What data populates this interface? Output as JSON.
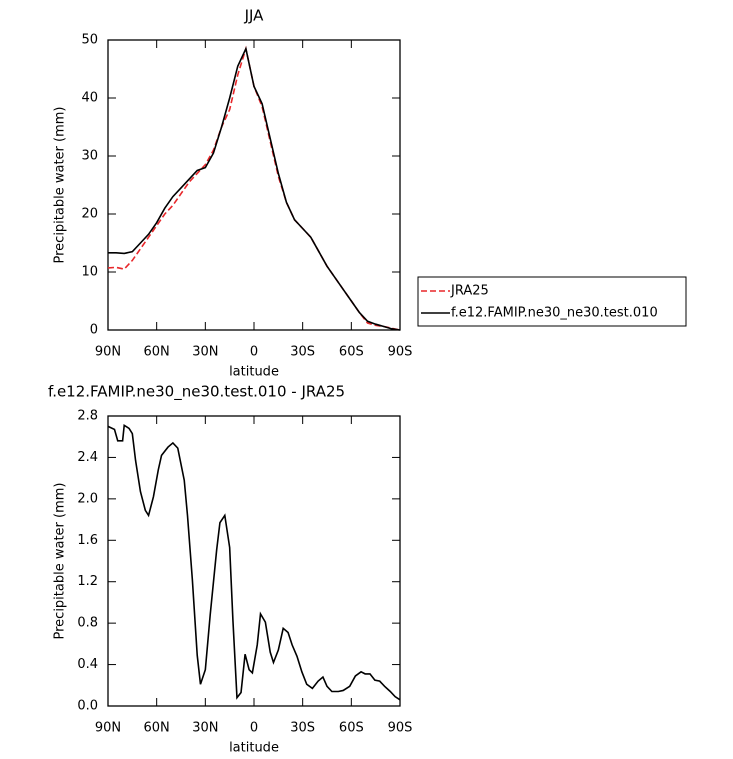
{
  "chart_data": [
    {
      "type": "line",
      "title": "JJA",
      "xlabel": "latitude",
      "ylabel": "Precipitable water (mm)",
      "x": [
        90,
        85,
        80,
        75,
        70,
        65,
        60,
        55,
        50,
        45,
        40,
        35,
        30,
        25,
        20,
        15,
        10,
        5,
        0,
        -5,
        -10,
        -15,
        -20,
        -25,
        -30,
        -35,
        -40,
        -45,
        -50,
        -55,
        -60,
        -65,
        -70,
        -75,
        -80,
        -85,
        -90
      ],
      "series": [
        {
          "name": "JRA25",
          "color": "#e8272a",
          "style": "dashed",
          "values": [
            10.7,
            10.8,
            10.5,
            12,
            14,
            16,
            18,
            20,
            21.5,
            23.5,
            25.5,
            27,
            28.5,
            31,
            35,
            38,
            44,
            48.5,
            42,
            38.5,
            32.5,
            26.5,
            22,
            19,
            17.5,
            16,
            13.5,
            11,
            9,
            7,
            5,
            3,
            1.2,
            0.8,
            0.6,
            0.3,
            0
          ]
        },
        {
          "name": "f.e12.FAMIP.ne30_ne30.test.010",
          "color": "#000000",
          "style": "solid",
          "values": [
            13.3,
            13.3,
            13.2,
            13.5,
            15,
            16.5,
            18.5,
            21,
            23,
            24.5,
            26,
            27.5,
            28,
            30.5,
            35,
            40,
            45.5,
            48.5,
            42,
            39,
            33,
            27,
            22,
            19,
            17.5,
            16,
            13.5,
            11,
            9,
            7,
            5,
            3,
            1.5,
            1,
            0.6,
            0.2,
            0
          ]
        }
      ],
      "xlim": [
        90,
        -90
      ],
      "xticks": [
        {
          "value": 90,
          "label": "90N"
        },
        {
          "value": 60,
          "label": "60N"
        },
        {
          "value": 30,
          "label": "30N"
        },
        0,
        {
          "value": -30,
          "label": "30S"
        },
        {
          "value": -60,
          "label": "60S"
        },
        {
          "value": -90,
          "label": "90S"
        }
      ],
      "ylim": [
        0,
        50
      ],
      "yticks": [
        0,
        10,
        20,
        30,
        40,
        50
      ],
      "legend": "right"
    },
    {
      "type": "line",
      "title": "f.e12.FAMIP.ne30_ne30.test.010 - JRA25",
      "xlabel": "latitude",
      "ylabel": "Precipitable water (mm)",
      "x": [
        90,
        86,
        84,
        81,
        80,
        77,
        75,
        73,
        70,
        67,
        65,
        62,
        59,
        57,
        53,
        50,
        47,
        43,
        41,
        38,
        35,
        33,
        30,
        27,
        23,
        21,
        18,
        15,
        13,
        10.5,
        8,
        5.5,
        3,
        1,
        -2,
        -4,
        -7,
        -10,
        -12,
        -15,
        -18,
        -21,
        -23.5,
        -26.5,
        -29.5,
        -32.5,
        -36,
        -39.5,
        -42.5,
        -45,
        -48,
        -52,
        -55,
        -59,
        -62.5,
        -66,
        -68.5,
        -71.5,
        -74.5,
        -77.5,
        -80.5,
        -84,
        -87,
        -90
      ],
      "color": "#000000",
      "style": "solid",
      "values": [
        2.7,
        2.67,
        2.56,
        2.56,
        2.71,
        2.68,
        2.63,
        2.37,
        2.07,
        1.89,
        1.84,
        2.02,
        2.28,
        2.42,
        2.5,
        2.54,
        2.49,
        2.18,
        1.84,
        1.22,
        0.49,
        0.21,
        0.35,
        0.88,
        1.51,
        1.77,
        1.84,
        1.53,
        0.83,
        0.08,
        0.13,
        0.5,
        0.35,
        0.32,
        0.59,
        0.89,
        0.81,
        0.52,
        0.42,
        0.54,
        0.75,
        0.71,
        0.59,
        0.48,
        0.33,
        0.21,
        0.17,
        0.24,
        0.28,
        0.19,
        0.14,
        0.14,
        0.15,
        0.19,
        0.29,
        0.33,
        0.31,
        0.31,
        0.25,
        0.24,
        0.19,
        0.14,
        0.09,
        0.06
      ],
      "xlim": [
        90,
        -90
      ],
      "xticks": [
        {
          "value": 90,
          "label": "90N"
        },
        {
          "value": 60,
          "label": "60N"
        },
        {
          "value": 30,
          "label": "30N"
        },
        0,
        {
          "value": -30,
          "label": "30S"
        },
        {
          "value": -60,
          "label": "60S"
        },
        {
          "value": -90,
          "label": "90S"
        }
      ],
      "ylim": [
        0,
        2.8
      ],
      "yticks": [
        {
          "value": 0,
          "label": "0.0"
        },
        0.4,
        0.8,
        1.2,
        1.6,
        {
          "value": 2,
          "label": "2.0"
        },
        2.4,
        2.8
      ]
    }
  ]
}
